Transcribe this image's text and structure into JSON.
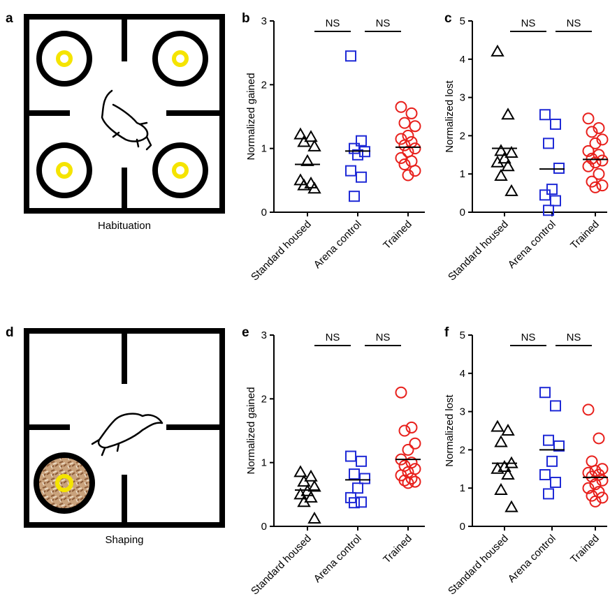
{
  "diagrams": [
    {
      "panel_label": "a",
      "caption": "Habituation"
    },
    {
      "panel_label": "d",
      "caption": "Shaping"
    }
  ],
  "chart_data": [
    {
      "type": "strip",
      "panel_label": "b",
      "y_label": "Normalized gained",
      "ylim": [
        0,
        3
      ],
      "yticks": [
        0,
        1,
        2,
        3
      ],
      "categories": [
        "Standard housed",
        "Arena control",
        "Trained"
      ],
      "annotations": [
        "NS",
        "NS"
      ],
      "series": [
        {
          "color": "#000000",
          "marker": "triangle",
          "mean": 0.75,
          "values": [
            1.22,
            1.18,
            1.1,
            1.03,
            0.8,
            0.5,
            0.45,
            0.42,
            0.37
          ]
        },
        {
          "color": "#1f2ad6",
          "marker": "square",
          "mean": 0.96,
          "values": [
            2.45,
            1.12,
            1.0,
            0.95,
            0.9,
            0.65,
            0.55,
            0.25
          ]
        },
        {
          "color": "#e8201c",
          "marker": "circle",
          "mean": 1.02,
          "values": [
            1.65,
            1.55,
            1.4,
            1.35,
            1.2,
            1.15,
            1.1,
            1.05,
            1.0,
            0.95,
            0.85,
            0.8,
            0.75,
            0.65,
            0.58
          ]
        }
      ]
    },
    {
      "type": "strip",
      "panel_label": "c",
      "y_label": "Normalized lost",
      "ylim": [
        0,
        5
      ],
      "yticks": [
        0,
        1,
        2,
        3,
        4,
        5
      ],
      "categories": [
        "Standard housed",
        "Arena control",
        "Trained"
      ],
      "annotations": [
        "NS",
        "NS"
      ],
      "series": [
        {
          "color": "#000000",
          "marker": "triangle",
          "mean": 1.67,
          "values": [
            4.2,
            2.55,
            1.6,
            1.55,
            1.4,
            1.3,
            1.2,
            0.95,
            0.55
          ]
        },
        {
          "color": "#1f2ad6",
          "marker": "square",
          "mean": 1.13,
          "values": [
            2.55,
            2.3,
            1.8,
            1.15,
            0.6,
            0.45,
            0.3,
            0.05
          ]
        },
        {
          "color": "#e8201c",
          "marker": "circle",
          "mean": 1.38,
          "values": [
            2.45,
            2.2,
            2.1,
            1.9,
            1.8,
            1.6,
            1.5,
            1.4,
            1.35,
            1.3,
            1.2,
            1.0,
            0.8,
            0.7,
            0.65
          ]
        }
      ]
    },
    {
      "type": "strip",
      "panel_label": "e",
      "y_label": "Normalized gained",
      "ylim": [
        0,
        3
      ],
      "yticks": [
        0,
        1,
        2,
        3
      ],
      "categories": [
        "Standard housed",
        "Arena control",
        "Trained"
      ],
      "annotations": [
        "NS",
        "NS"
      ],
      "series": [
        {
          "color": "#000000",
          "marker": "triangle",
          "mean": 0.57,
          "values": [
            0.85,
            0.78,
            0.7,
            0.62,
            0.55,
            0.5,
            0.45,
            0.38,
            0.12
          ]
        },
        {
          "color": "#1f2ad6",
          "marker": "square",
          "mean": 0.73,
          "values": [
            1.1,
            1.02,
            0.82,
            0.75,
            0.6,
            0.45,
            0.38,
            0.37
          ]
        },
        {
          "color": "#e8201c",
          "marker": "circle",
          "mean": 1.05,
          "values": [
            2.1,
            1.55,
            1.5,
            1.3,
            1.2,
            1.05,
            1.0,
            0.95,
            0.9,
            0.85,
            0.8,
            0.75,
            0.72,
            0.7,
            0.68
          ]
        }
      ]
    },
    {
      "type": "strip",
      "panel_label": "f",
      "y_label": "Normalized lost",
      "ylim": [
        0,
        5
      ],
      "yticks": [
        0,
        1,
        2,
        3,
        4,
        5
      ],
      "categories": [
        "Standard housed",
        "Arena control",
        "Trained"
      ],
      "annotations": [
        "NS",
        "NS"
      ],
      "series": [
        {
          "color": "#000000",
          "marker": "triangle",
          "mean": 1.65,
          "values": [
            2.6,
            2.5,
            2.2,
            1.65,
            1.55,
            1.5,
            1.35,
            0.95,
            0.5
          ]
        },
        {
          "color": "#1f2ad6",
          "marker": "square",
          "mean": 2.0,
          "values": [
            3.5,
            3.15,
            2.25,
            2.1,
            1.7,
            1.35,
            1.15,
            0.85
          ]
        },
        {
          "color": "#e8201c",
          "marker": "circle",
          "mean": 1.28,
          "values": [
            3.05,
            2.3,
            1.7,
            1.5,
            1.45,
            1.4,
            1.35,
            1.3,
            1.2,
            1.1,
            1.0,
            0.9,
            0.8,
            0.75,
            0.65
          ]
        }
      ]
    }
  ]
}
